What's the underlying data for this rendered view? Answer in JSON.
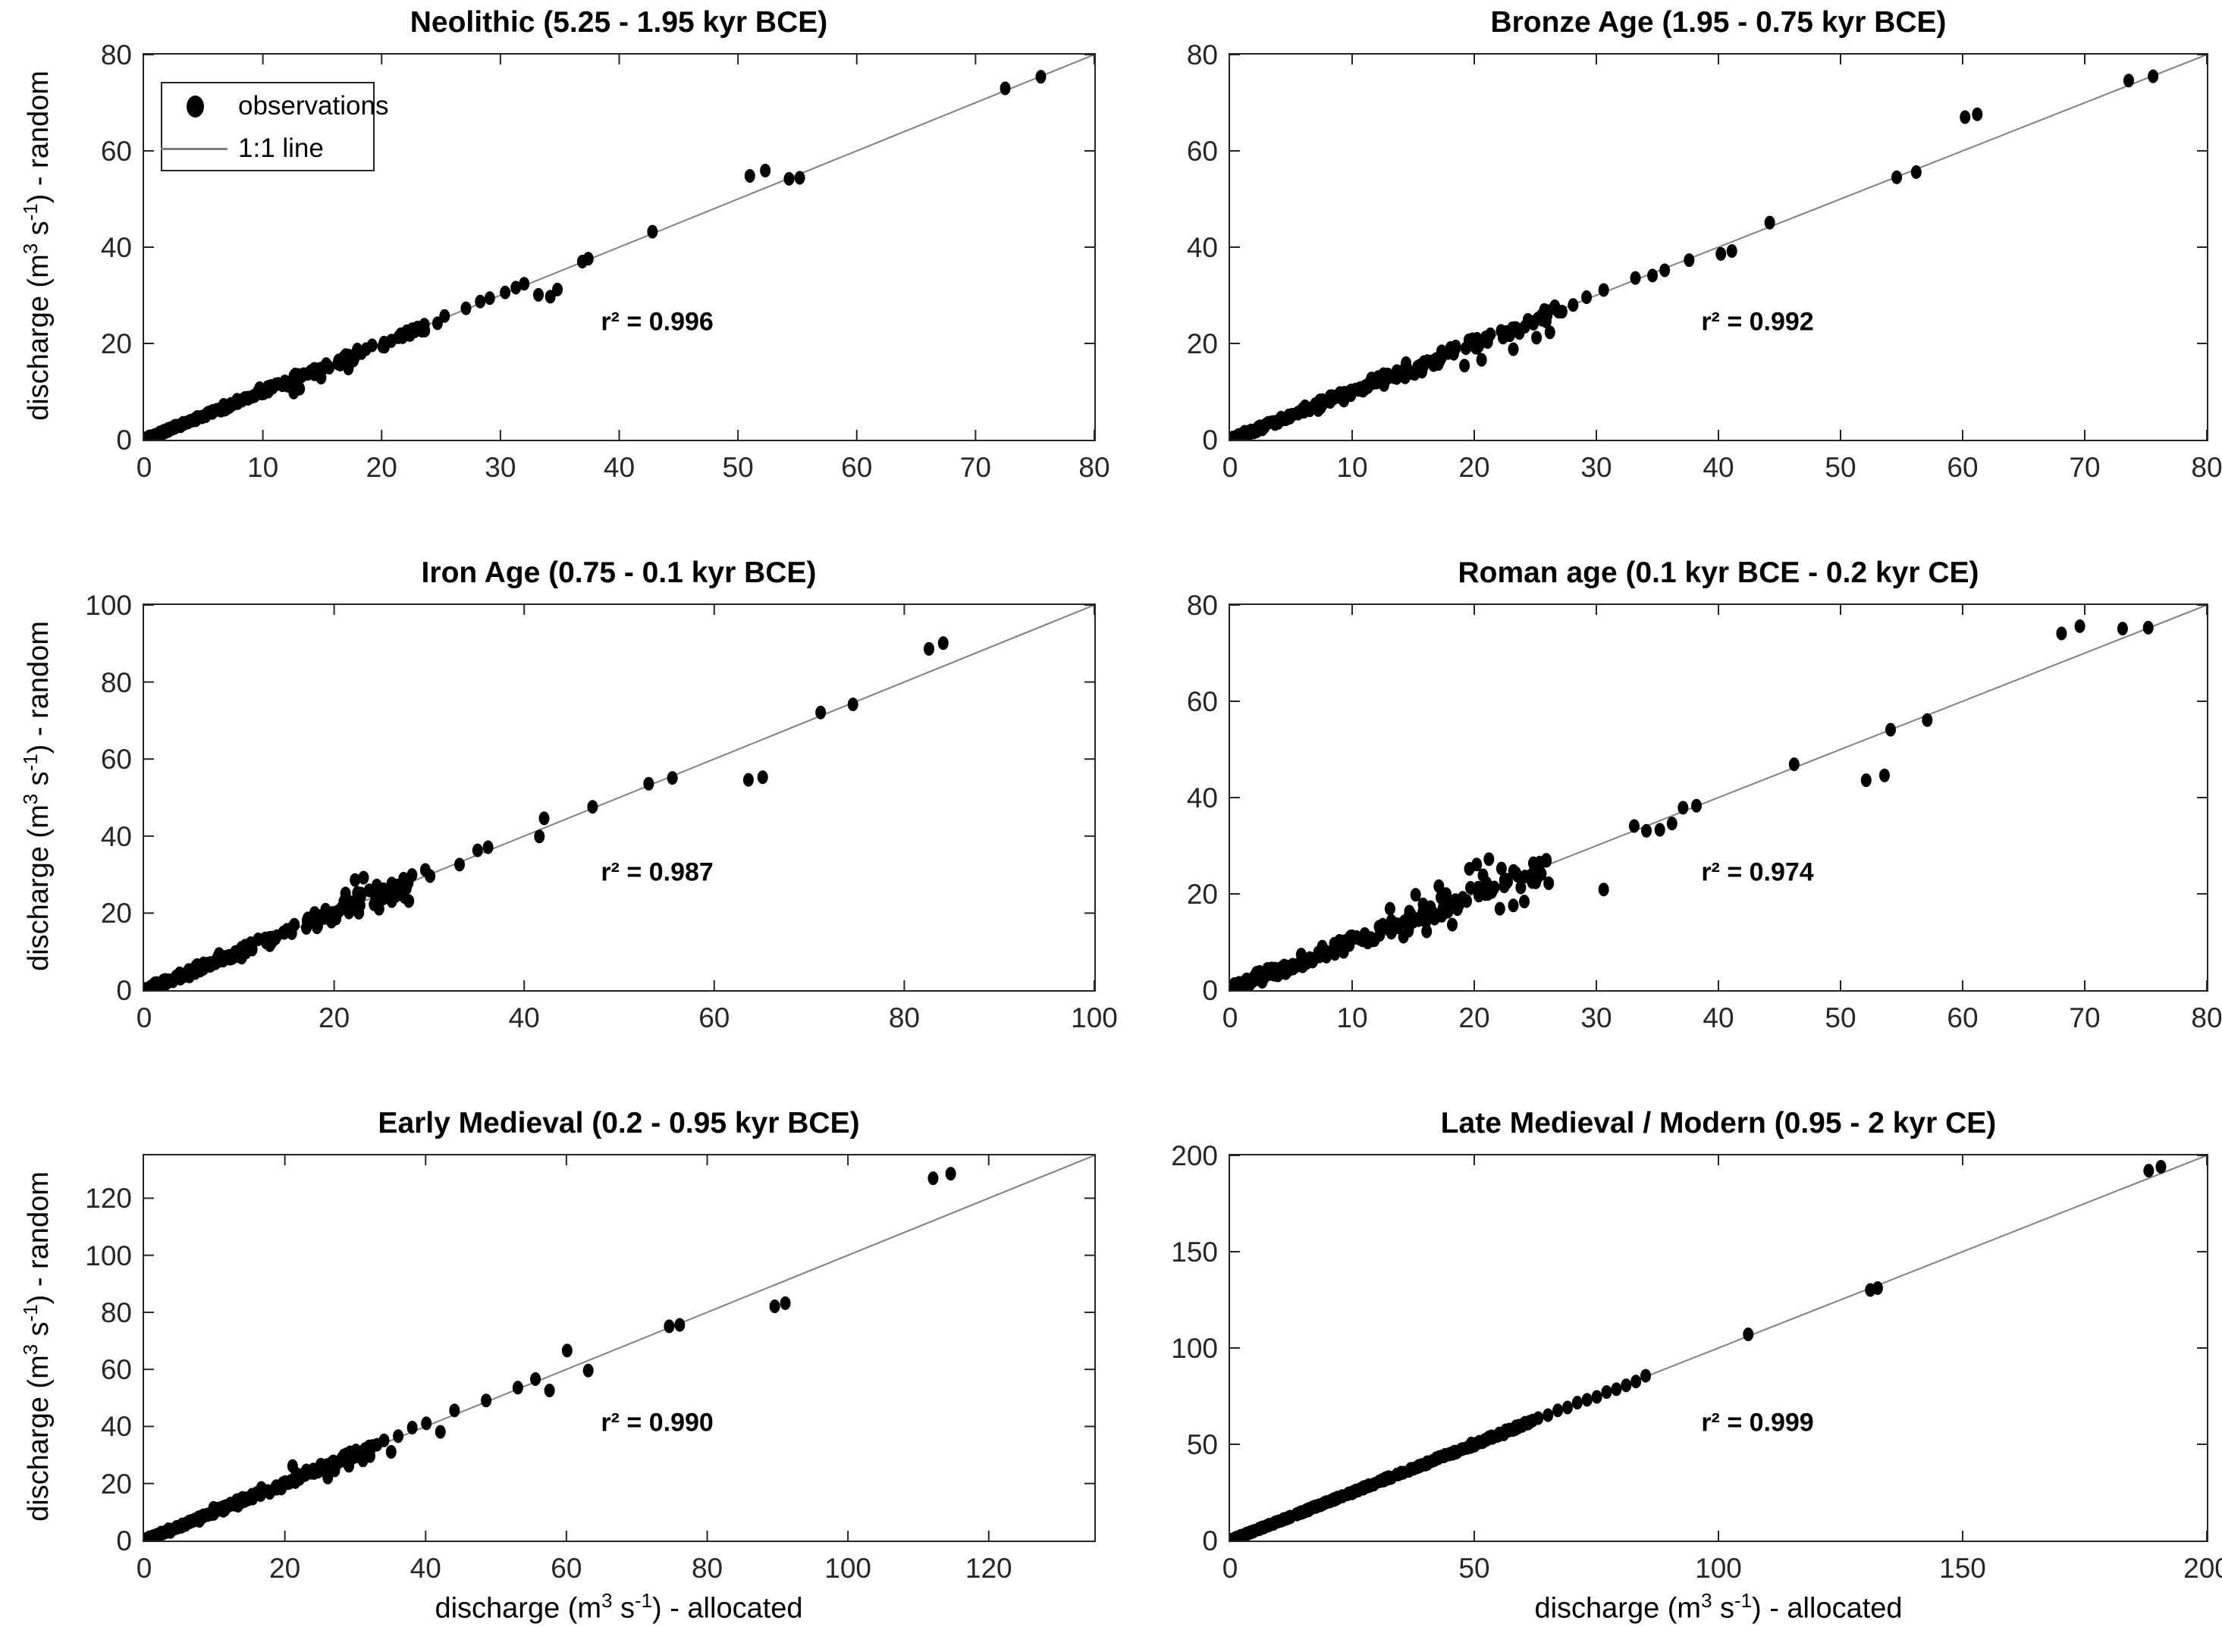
{
  "figure": {
    "description": "Six scatter subplots comparing allocated vs randomly-assigned discharge per archaeological period",
    "background": "#ffffff"
  },
  "colors": {
    "marker": "#000000",
    "identity_line": "#808080",
    "axis": "#262626",
    "text": "#000000"
  },
  "legend": {
    "entries": [
      "observations",
      "1:1 line"
    ],
    "position": "top-left of first panel"
  },
  "axis_labels": {
    "y_parts": [
      "discharge (m",
      "3",
      " s",
      "-1",
      ") - random"
    ],
    "x_parts": [
      "discharge (m",
      "3",
      " s",
      "-1",
      ") - allocated"
    ]
  },
  "chart_data": [
    {
      "type": "scatter",
      "title": "Neolithic (5.25 - 1.95 kyr BCE)",
      "r2": 0.996,
      "r2_label": "r² = 0.996",
      "col": "left",
      "show_ylabel": true,
      "show_xlabel": false,
      "show_legend": true,
      "xlim": [
        0,
        80
      ],
      "ylim": [
        0,
        80
      ],
      "xticks": [
        0,
        10,
        20,
        30,
        40,
        50,
        60,
        70,
        80
      ],
      "yticks": [
        0,
        20,
        40,
        60,
        80
      ],
      "points": [
        [
          72.5,
          73
        ],
        [
          75.5,
          75.4
        ],
        [
          51,
          54.8
        ],
        [
          52.3,
          55.9
        ],
        [
          54.3,
          54.2
        ],
        [
          55.2,
          54.4
        ],
        [
          42.8,
          43.2
        ],
        [
          36.9,
          37.0
        ],
        [
          37.4,
          37.6
        ],
        [
          33.2,
          30.1
        ],
        [
          34.2,
          29.7
        ],
        [
          34.8,
          31.2
        ],
        [
          31.3,
          31.6
        ],
        [
          32.0,
          32.4
        ],
        [
          30.4,
          30.6
        ],
        [
          29.1,
          29.4
        ],
        [
          28.3,
          28.7
        ],
        [
          27.1,
          27.3
        ],
        [
          25.3,
          25.7
        ],
        [
          24.7,
          24.2
        ],
        [
          23.6,
          23.9
        ],
        [
          22.4,
          22.2
        ],
        [
          21.6,
          21.9
        ],
        [
          20.8,
          20.5
        ],
        [
          12.6,
          9.8
        ],
        [
          13.1,
          10.6
        ],
        [
          12.1,
          11.2
        ],
        [
          17.2,
          14.8
        ],
        [
          16.5,
          15.6
        ],
        [
          14.9,
          12.9
        ],
        [
          15.5,
          15.2
        ],
        [
          16.8,
          17.1
        ],
        [
          18.3,
          18.0
        ],
        [
          19.2,
          19.6
        ]
      ],
      "cluster": {
        "n": 230,
        "max_x": 24,
        "exp": 1.9,
        "noise": 0.5,
        "seed": 101
      }
    },
    {
      "type": "scatter",
      "title": "Bronze Age (1.95 - 0.75 kyr BCE)",
      "r2": 0.992,
      "r2_label": "r² = 0.992",
      "col": "right",
      "show_ylabel": false,
      "show_xlabel": false,
      "show_legend": false,
      "xlim": [
        0,
        80
      ],
      "ylim": [
        0,
        80
      ],
      "xticks": [
        0,
        10,
        20,
        30,
        40,
        50,
        60,
        70,
        80
      ],
      "yticks": [
        0,
        20,
        40,
        60,
        80
      ],
      "points": [
        [
          73.6,
          74.6
        ],
        [
          75.6,
          75.5
        ],
        [
          60.2,
          67.0
        ],
        [
          61.2,
          67.6
        ],
        [
          54.6,
          54.5
        ],
        [
          56.2,
          55.6
        ],
        [
          44.2,
          45.1
        ],
        [
          40.2,
          38.6
        ],
        [
          41.1,
          39.2
        ],
        [
          37.6,
          37.3
        ],
        [
          35.6,
          35.2
        ],
        [
          33.2,
          33.6
        ],
        [
          34.6,
          34.1
        ],
        [
          30.6,
          31.1
        ],
        [
          29.2,
          29.6
        ],
        [
          28.1,
          28.0
        ],
        [
          27.2,
          26.6
        ],
        [
          26.2,
          22.3
        ],
        [
          25.1,
          21.2
        ],
        [
          23.2,
          18.8
        ],
        [
          24.4,
          24.9
        ],
        [
          22.2,
          22.6
        ],
        [
          21.1,
          20.3
        ],
        [
          19.2,
          15.4
        ],
        [
          20.6,
          16.6
        ],
        [
          18.4,
          18.8
        ],
        [
          17.3,
          17.0
        ]
      ],
      "cluster": {
        "n": 240,
        "max_x": 27,
        "exp": 1.9,
        "noise": 0.85,
        "seed": 202
      }
    },
    {
      "type": "scatter",
      "title": "Iron Age (0.75 - 0.1 kyr BCE)",
      "r2": 0.987,
      "r2_label": "r² = 0.987",
      "col": "left",
      "show_ylabel": true,
      "show_xlabel": false,
      "show_legend": false,
      "xlim": [
        0,
        100
      ],
      "ylim": [
        0,
        100
      ],
      "xticks": [
        0,
        20,
        40,
        60,
        80,
        100
      ],
      "yticks": [
        0,
        20,
        40,
        60,
        80,
        100
      ],
      "points": [
        [
          82.6,
          88.6
        ],
        [
          84.1,
          90.1
        ],
        [
          71.2,
          72.1
        ],
        [
          74.6,
          74.2
        ],
        [
          63.6,
          54.6
        ],
        [
          65.1,
          55.3
        ],
        [
          55.6,
          55.1
        ],
        [
          53.1,
          53.6
        ],
        [
          47.2,
          47.6
        ],
        [
          42.1,
          44.6
        ],
        [
          41.6,
          39.9
        ],
        [
          36.2,
          37.1
        ],
        [
          35.1,
          36.3
        ],
        [
          33.2,
          32.6
        ],
        [
          30.1,
          29.6
        ],
        [
          22.2,
          28.6
        ],
        [
          23.1,
          29.2
        ],
        [
          21.2,
          25.1
        ],
        [
          24.2,
          22.3
        ],
        [
          25.2,
          26.2
        ],
        [
          20.2,
          18.6
        ],
        [
          22.6,
          20.1
        ],
        [
          26.2,
          27.1
        ],
        [
          28.2,
          29.9
        ],
        [
          29.6,
          31.2
        ],
        [
          27.4,
          24.2
        ],
        [
          19.1,
          20.9
        ],
        [
          18.2,
          16.3
        ]
      ],
      "cluster": {
        "n": 210,
        "max_x": 28,
        "exp": 1.8,
        "noise": 1.25,
        "seed": 303
      }
    },
    {
      "type": "scatter",
      "title": "Roman age (0.1 kyr BCE - 0.2 kyr CE)",
      "r2": 0.974,
      "r2_label": "r² = 0.974",
      "col": "right",
      "show_ylabel": false,
      "show_xlabel": false,
      "show_legend": false,
      "xlim": [
        0,
        80
      ],
      "ylim": [
        0,
        80
      ],
      "xticks": [
        0,
        10,
        20,
        30,
        40,
        50,
        60,
        70,
        80
      ],
      "yticks": [
        0,
        20,
        40,
        60,
        80
      ],
      "points": [
        [
          68.1,
          74.1
        ],
        [
          69.6,
          75.6
        ],
        [
          73.1,
          75.1
        ],
        [
          75.2,
          75.3
        ],
        [
          57.1,
          56.1
        ],
        [
          54.1,
          54.1
        ],
        [
          46.2,
          46.9
        ],
        [
          52.1,
          43.6
        ],
        [
          53.6,
          44.6
        ],
        [
          37.1,
          37.9
        ],
        [
          38.2,
          38.3
        ],
        [
          33.1,
          34.1
        ],
        [
          35.2,
          33.3
        ],
        [
          30.6,
          20.9
        ],
        [
          36.2,
          34.6
        ],
        [
          34.1,
          33.1
        ],
        [
          20.2,
          26.1
        ],
        [
          21.2,
          27.2
        ],
        [
          14.2,
          11.1
        ],
        [
          16.1,
          12.2
        ],
        [
          18.2,
          13.6
        ],
        [
          23.2,
          17.6
        ],
        [
          24.1,
          18.4
        ],
        [
          26.1,
          22.2
        ],
        [
          25.2,
          24.1
        ],
        [
          22.1,
          16.9
        ],
        [
          19.6,
          25.2
        ],
        [
          17.1,
          21.6
        ],
        [
          15.2,
          19.8
        ],
        [
          13.1,
          16.9
        ]
      ],
      "cluster": {
        "n": 260,
        "max_x": 26,
        "exp": 2.0,
        "noise": 1.5,
        "seed": 404
      }
    },
    {
      "type": "scatter",
      "title": "Early Medieval (0.2 - 0.95 kyr BCE)",
      "r2": 0.99,
      "r2_label": "r² = 0.990",
      "col": "left",
      "show_ylabel": true,
      "show_xlabel": true,
      "show_legend": false,
      "xlim": [
        0,
        135
      ],
      "ylim": [
        0,
        135
      ],
      "xticks": [
        0,
        20,
        40,
        60,
        80,
        100,
        120
      ],
      "yticks": [
        0,
        20,
        40,
        60,
        80,
        100,
        120
      ],
      "points": [
        [
          112.1,
          127.0
        ],
        [
          114.6,
          128.6
        ],
        [
          89.6,
          82.1
        ],
        [
          91.1,
          83.2
        ],
        [
          74.6,
          75.1
        ],
        [
          76.1,
          75.6
        ],
        [
          60.1,
          66.6
        ],
        [
          63.1,
          59.6
        ],
        [
          55.6,
          56.6
        ],
        [
          57.6,
          52.6
        ],
        [
          53.1,
          53.6
        ],
        [
          48.6,
          49.1
        ],
        [
          44.1,
          45.6
        ],
        [
          40.1,
          41.1
        ],
        [
          42.1,
          38.1
        ],
        [
          38.1,
          39.6
        ],
        [
          36.1,
          36.6
        ],
        [
          34.1,
          35.1
        ],
        [
          32.1,
          29.6
        ],
        [
          30.1,
          31.6
        ],
        [
          29.1,
          26.2
        ],
        [
          27.1,
          24.6
        ],
        [
          28.1,
          28.9
        ],
        [
          25.1,
          26.6
        ],
        [
          23.1,
          23.6
        ],
        [
          21.1,
          26.1
        ],
        [
          31.1,
          28.1
        ],
        [
          33.1,
          33.6
        ],
        [
          35.1,
          31.1
        ],
        [
          26.1,
          22.1
        ]
      ],
      "cluster": {
        "n": 230,
        "max_x": 33,
        "exp": 1.9,
        "noise": 0.85,
        "seed": 505
      }
    },
    {
      "type": "scatter",
      "title": "Late Medieval / Modern (0.95 - 2 kyr CE)",
      "r2": 0.999,
      "r2_label": "r² = 0.999",
      "col": "right",
      "show_ylabel": false,
      "show_xlabel": true,
      "show_legend": false,
      "xlim": [
        0,
        200
      ],
      "ylim": [
        0,
        200
      ],
      "xticks": [
        0,
        50,
        100,
        150,
        200
      ],
      "yticks": [
        0,
        50,
        100,
        150,
        200
      ],
      "points": [
        [
          188.1,
          192.1
        ],
        [
          190.6,
          194.1
        ],
        [
          131.1,
          130.1
        ],
        [
          132.6,
          131.1
        ],
        [
          106.1,
          107.1
        ],
        [
          85.1,
          85.6
        ],
        [
          83.1,
          82.6
        ],
        [
          81.1,
          80.6
        ],
        [
          79.1,
          78.6
        ],
        [
          77.1,
          77.1
        ],
        [
          75.1,
          74.6
        ],
        [
          73.1,
          73.1
        ],
        [
          71.1,
          71.6
        ],
        [
          69.1,
          69.1
        ],
        [
          67.1,
          67.6
        ],
        [
          65.1,
          65.1
        ],
        [
          63.1,
          63.6
        ],
        [
          61.1,
          61.1
        ],
        [
          59.1,
          59.6
        ],
        [
          57.1,
          57.1
        ],
        [
          55.1,
          55.6
        ]
      ],
      "cluster": {
        "n": 320,
        "max_x": 62,
        "exp": 1.7,
        "noise": 0.4,
        "seed": 606
      }
    }
  ]
}
